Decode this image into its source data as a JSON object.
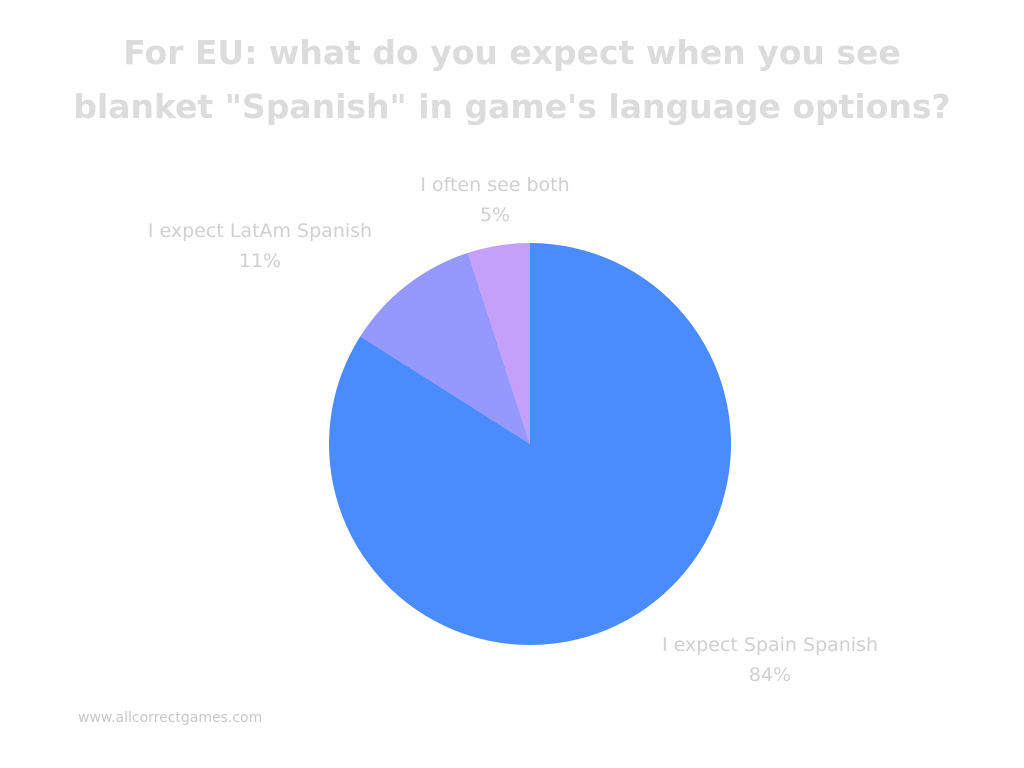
{
  "chart_data": {
    "type": "pie",
    "title_lines": [
      "For EU: what do you expect when you see",
      "blanket \"Spanish\" in game's language options?"
    ],
    "start_angle_deg": 0,
    "direction": "clockwise",
    "slices": [
      {
        "label": "I expect Spain Spanish",
        "value": 84,
        "value_label": "84%",
        "color": "#4a8cff"
      },
      {
        "label": "I expect LatAm Spanish",
        "value": 11,
        "value_label": "11%",
        "color": "#9599fe"
      },
      {
        "label": "I often see both",
        "value": 5,
        "value_label": "5%",
        "color": "#c5a0fa"
      }
    ]
  },
  "footer": {
    "url": "www.allcorrectgames.com"
  }
}
